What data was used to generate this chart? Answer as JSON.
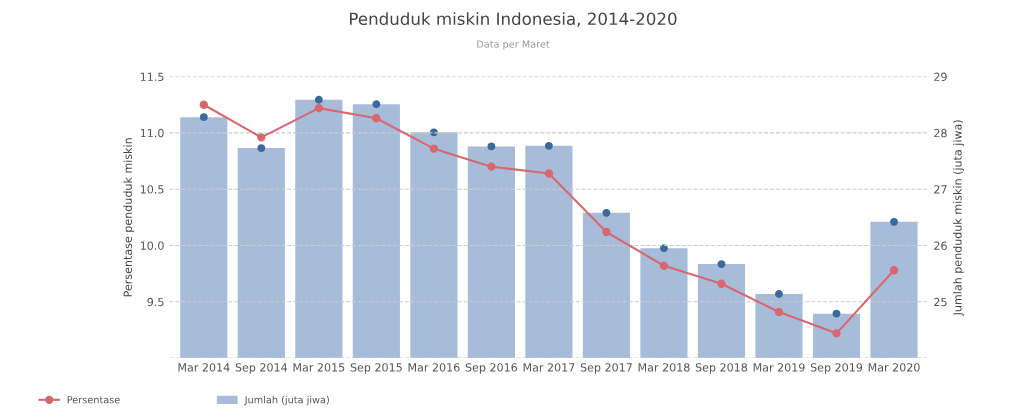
{
  "chart_data": {
    "type": "bar",
    "title": "Penduduk miskin Indonesia, 2014-2020",
    "subtitle": "Data per Maret",
    "ylabel": "Persentase penduduk miskin",
    "y2label": "Jumlah penduduk miskin (juta jiwa)",
    "categories": [
      "Mar 2014",
      "Sep 2014",
      "Mar 2015",
      "Sep 2015",
      "Mar 2016",
      "Sep 2016",
      "Mar 2017",
      "Sep 2017",
      "Mar 2018",
      "Sep 2018",
      "Mar 2019",
      "Sep 2019",
      "Mar 2020"
    ],
    "series": [
      {
        "name": "Persentase",
        "type": "line",
        "color": "#d9676f",
        "marker": "circle",
        "values": [
          11.25,
          10.96,
          11.22,
          11.13,
          10.86,
          10.7,
          10.64,
          10.12,
          9.82,
          9.66,
          9.41,
          9.22,
          9.78
        ]
      },
      {
        "name": "Jumlah (juta jiwa)",
        "axis": "y2",
        "color": "#a7bcd9",
        "values": [
          28.28,
          27.73,
          28.59,
          28.51,
          28.01,
          27.76,
          27.77,
          26.58,
          25.95,
          25.67,
          25.14,
          24.79,
          26.42
        ]
      },
      {
        "type": "scatter",
        "axis": "y2",
        "color": "#3d6a9c",
        "marker": "circle",
        "values": [
          28.28,
          27.73,
          28.59,
          28.51,
          28.01,
          27.76,
          27.77,
          26.58,
          25.95,
          25.67,
          25.14,
          24.79,
          26.42
        ]
      }
    ],
    "ylim": [
      9.0,
      11.5
    ],
    "yticks": [
      {
        "value": 9.0,
        "label": null
      },
      9.5,
      {
        "value": 10,
        "label": "10.0"
      },
      10.5,
      {
        "value": 11,
        "label": "11.0"
      },
      11.5
    ],
    "y2lim": [
      24,
      29
    ],
    "y2ticks": [
      {
        "value": 24,
        "label": null
      },
      25,
      26,
      27,
      28,
      29
    ],
    "grid": "y",
    "legend": "bottom left"
  }
}
